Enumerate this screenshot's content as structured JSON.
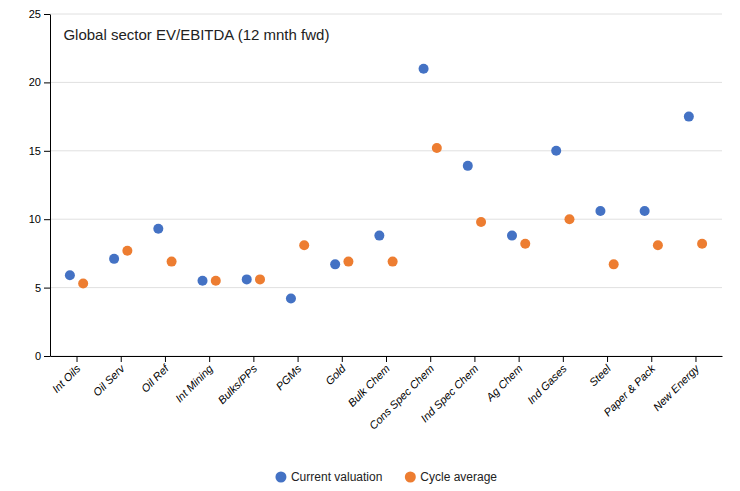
{
  "chart_data": {
    "type": "scatter",
    "title": "Global sector EV/EBITDA (12 mnth fwd)",
    "categories": [
      "Int Oils",
      "Oil Serv",
      "Oil Ref",
      "Int Mining",
      "Bulks/PPs",
      "PGMs",
      "Gold",
      "Bulk Chem",
      "Cons Spec Chem",
      "Ind Spec Chem",
      "Ag Chem",
      "Ind Gases",
      "Steel",
      "Paper & Pack",
      "New Energy"
    ],
    "series": [
      {
        "name": "Current valuation",
        "color": "#4472C4",
        "values": [
          5.9,
          7.1,
          9.3,
          5.5,
          5.6,
          4.2,
          6.7,
          8.8,
          21.0,
          13.9,
          8.8,
          15.0,
          10.6,
          10.6,
          17.5
        ]
      },
      {
        "name": "Cycle average",
        "color": "#ED7D31",
        "values": [
          5.3,
          7.7,
          6.9,
          5.5,
          5.6,
          8.1,
          6.9,
          6.9,
          15.2,
          9.8,
          8.2,
          10.0,
          6.7,
          8.1,
          8.2
        ]
      }
    ],
    "ylim": [
      0,
      25
    ],
    "yticks": [
      0,
      5,
      10,
      15,
      20,
      25
    ],
    "grid": true,
    "legend": "bottom"
  }
}
